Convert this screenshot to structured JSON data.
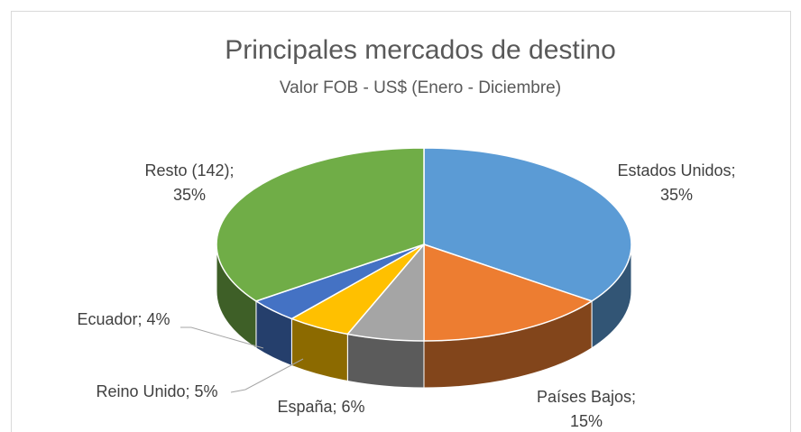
{
  "chart_data": {
    "type": "pie",
    "title": "Principales mercados de destino",
    "subtitle": "Valor FOB - US$ (Enero - Diciembre)",
    "categories": [
      "Estados Unidos;",
      "Países Bajos;",
      "España;",
      "Reino Unido;",
      "Ecuador;",
      "Resto (142);"
    ],
    "values": [
      35,
      15,
      6,
      5,
      4,
      35
    ],
    "value_labels": [
      "35%",
      "15%",
      "6%",
      "5%",
      "4%",
      "35%"
    ],
    "colors": [
      "#5b9bd5",
      "#ed7d31",
      "#a5a5a5",
      "#ffc000",
      "#4472c4",
      "#70ad47"
    ]
  }
}
